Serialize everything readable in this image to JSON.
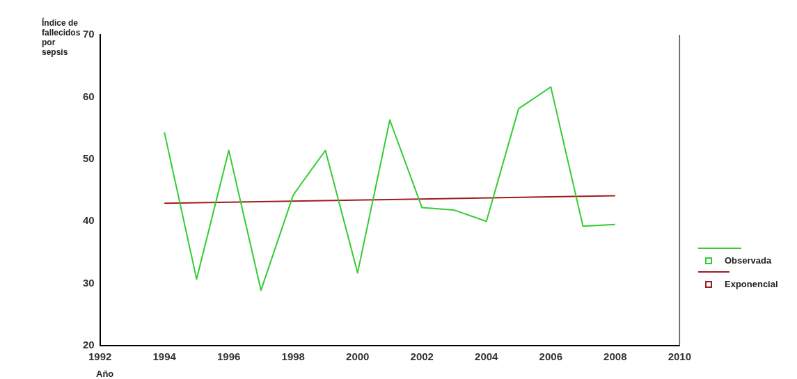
{
  "chart_data": {
    "type": "line",
    "ylabel": "Índice de fallecidos por sepsis",
    "xlabel": "Año",
    "xlim": [
      1992,
      2010
    ],
    "xticks": [
      1992,
      1994,
      1996,
      1998,
      2000,
      2002,
      2004,
      2006,
      2008,
      2010
    ],
    "ylim": [
      20,
      70
    ],
    "yticks": [
      20,
      30,
      40,
      50,
      60,
      70
    ],
    "grid": false,
    "legend": "right",
    "marker": "none",
    "line_style": "solid",
    "series": [
      {
        "name": "Observada",
        "color": "#33cc33",
        "x": [
          1994,
          1995,
          1996,
          1997,
          1998,
          1998.3,
          1999,
          2000,
          2001,
          2002,
          2003,
          2004,
          2005,
          2006,
          2007,
          2008
        ],
        "values": [
          54.3,
          30.7,
          51.4,
          28.9,
          44.2,
          46.4,
          51.4,
          31.7,
          56.3,
          42.2,
          41.8,
          40.0,
          58.1,
          61.6,
          39.2,
          39.5
        ]
      },
      {
        "name": "Exponencial",
        "color": "#a01c1c",
        "x": [
          1994,
          2001,
          2008
        ],
        "values": [
          42.9,
          43.5,
          44.1
        ]
      }
    ]
  }
}
